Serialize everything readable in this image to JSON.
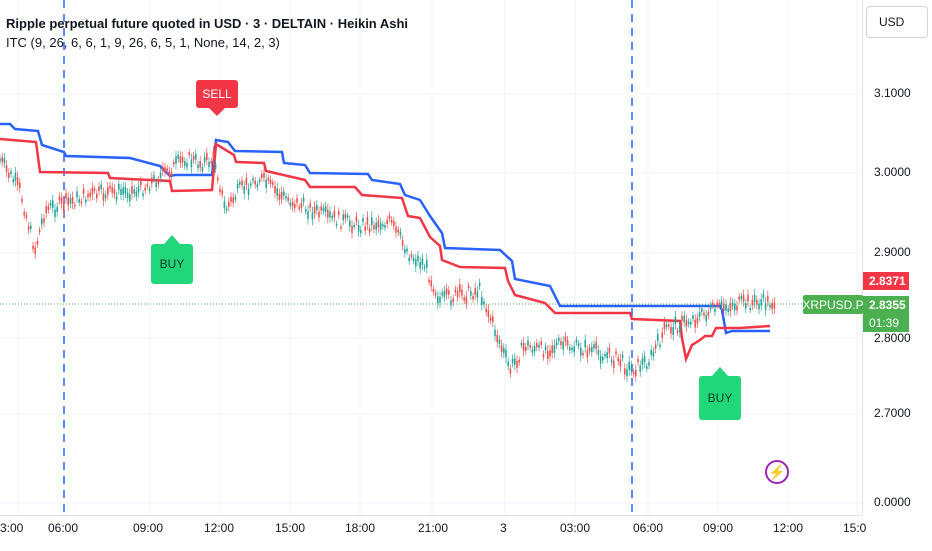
{
  "legend": {
    "title": "Ripple perpetual future quoted in USD · 3 · DELTAIN · Heikin Ashi",
    "indicator": "ITC (9, 26, 6, 6, 1, 9, 26, 6, 5, 1, None, 14, 2, 3)"
  },
  "currency_button": "USD",
  "price_axis": {
    "labels": [
      {
        "text": "3.1000",
        "value": 3.1
      },
      {
        "text": "3.0000",
        "value": 3.0
      },
      {
        "text": "2.9000",
        "value": 2.9
      },
      {
        "text": "2.8000",
        "value": 2.8
      },
      {
        "text": "2.7000",
        "value": 2.7
      },
      {
        "text": "0.0000",
        "value": null
      }
    ],
    "tag_red": "2.8371",
    "tag_green": "2.8355",
    "countdown": "01:39",
    "symbol_tag": "XRPUSD.P"
  },
  "time_axis": [
    "3:00",
    "06:00",
    "09:00",
    "12:00",
    "15:00",
    "18:00",
    "21:00",
    "3",
    "03:00",
    "06:00",
    "09:00",
    "12:00",
    "15:0"
  ],
  "signals": {
    "sell": "SELL",
    "buy_1": "BUY",
    "buy_2": "BUY"
  },
  "colors": {
    "up": "#26a69a",
    "down": "#ef5350",
    "blue_line": "#2962ff",
    "red_line": "#f23645",
    "buy_bg": "#22d67a",
    "sell_bg": "#f23645",
    "price_line": "#4caf50"
  }
}
